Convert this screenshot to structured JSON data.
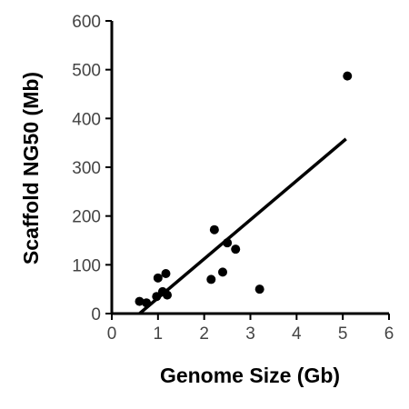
{
  "chart_data": {
    "type": "scatter",
    "title": "",
    "xlabel": "Genome Size (Gb)",
    "ylabel": "Scaffold NG50 (Mb)",
    "xlim": [
      0,
      6
    ],
    "ylim": [
      0,
      600
    ],
    "xticks": [
      0,
      1,
      2,
      3,
      4,
      5,
      6
    ],
    "yticks": [
      0,
      100,
      200,
      300,
      400,
      500,
      600
    ],
    "grid": false,
    "legend": "none",
    "colors": {
      "points": "#000000",
      "axis": "#000000",
      "tick_labels": "#444444"
    },
    "series": [
      {
        "points": [
          {
            "x": 0.6,
            "y": 25
          },
          {
            "x": 0.75,
            "y": 22
          },
          {
            "x": 0.97,
            "y": 35
          },
          {
            "x": 1.0,
            "y": 73
          },
          {
            "x": 1.1,
            "y": 45
          },
          {
            "x": 1.17,
            "y": 82
          },
          {
            "x": 1.2,
            "y": 38
          },
          {
            "x": 2.15,
            "y": 70
          },
          {
            "x": 2.22,
            "y": 172
          },
          {
            "x": 2.4,
            "y": 85
          },
          {
            "x": 2.5,
            "y": 145
          },
          {
            "x": 2.68,
            "y": 132
          },
          {
            "x": 3.2,
            "y": 50
          },
          {
            "x": 5.1,
            "y": 487
          }
        ]
      }
    ],
    "trendline": {
      "type": "linear",
      "x_start": 0.6,
      "y_start": 0,
      "x_end": 5.07,
      "y_end": 358
    }
  }
}
